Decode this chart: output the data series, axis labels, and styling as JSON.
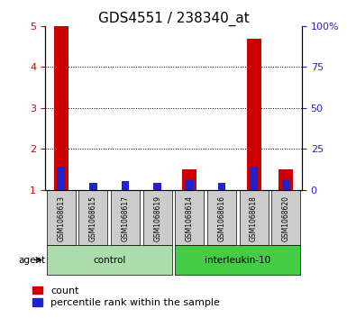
{
  "title": "GDS4551 / 238340_at",
  "samples": [
    "GSM1068613",
    "GSM1068615",
    "GSM1068617",
    "GSM1068619",
    "GSM1068614",
    "GSM1068616",
    "GSM1068618",
    "GSM1068620"
  ],
  "count_values": [
    5.0,
    1.0,
    1.0,
    1.0,
    1.5,
    1.0,
    4.7,
    1.5
  ],
  "percentile_values": [
    14,
    4,
    5,
    4,
    6,
    4,
    14,
    6
  ],
  "groups": [
    {
      "label": "control",
      "indices": [
        0,
        1,
        2,
        3
      ],
      "color": "#aaddaa"
    },
    {
      "label": "interleukin-10",
      "indices": [
        4,
        5,
        6,
        7
      ],
      "color": "#44cc44"
    }
  ],
  "ylim_left": [
    1,
    5
  ],
  "ylim_right": [
    0,
    100
  ],
  "yticks_left": [
    1,
    2,
    3,
    4,
    5
  ],
  "yticks_right": [
    0,
    25,
    50,
    75,
    100
  ],
  "ytick_labels_right": [
    "0",
    "25",
    "50",
    "75",
    "100%"
  ],
  "bar_color_red": "#cc0000",
  "bar_color_blue": "#2222cc",
  "bg_color_samples": "#cccccc",
  "bg_color_plot": "#ffffff",
  "title_fontsize": 11,
  "tick_fontsize": 8,
  "legend_fontsize": 8,
  "agent_label": "agent",
  "grid_color": "#000000"
}
